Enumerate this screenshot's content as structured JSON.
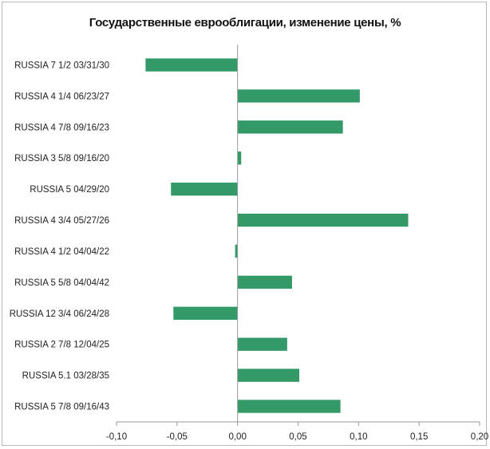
{
  "chart_data": {
    "type": "bar",
    "orientation": "horizontal",
    "title": "Государственные еврооблигации, изменение цены, %",
    "categories": [
      "RUSSIA 7 1/2 03/31/30",
      "RUSSIA 4 1/4 06/23/27",
      "RUSSIA 4 7/8 09/16/23",
      "RUSSIA 3 5/8 09/16/20",
      "RUSSIA 5 04/29/20",
      "RUSSIA 4 3/4 05/27/26",
      "RUSSIA 4 1/2 04/04/22",
      "RUSSIA 5 5/8 04/04/42",
      "RUSSIA 12 3/4 06/24/28",
      "RUSSIA 2 7/8 12/04/25",
      "RUSSIA 5.1 03/28/35",
      "RUSSIA 5 7/8 09/16/43"
    ],
    "values": [
      -0.076,
      0.101,
      0.087,
      0.003,
      -0.055,
      0.141,
      -0.002,
      0.045,
      -0.053,
      0.041,
      0.051,
      0.085
    ],
    "xlim": [
      -0.1,
      0.2
    ],
    "xticks": [
      -0.1,
      -0.05,
      0.0,
      0.05,
      0.1,
      0.15,
      0.2
    ],
    "xtick_labels": [
      "-0,10",
      "-0,05",
      "0,00",
      "0,05",
      "0,10",
      "0,15",
      "0,20"
    ],
    "xlabel": "",
    "ylabel": "",
    "grid": false,
    "legend": "none",
    "bar_color": "#339966",
    "axis_color": "#9a9a9a"
  }
}
